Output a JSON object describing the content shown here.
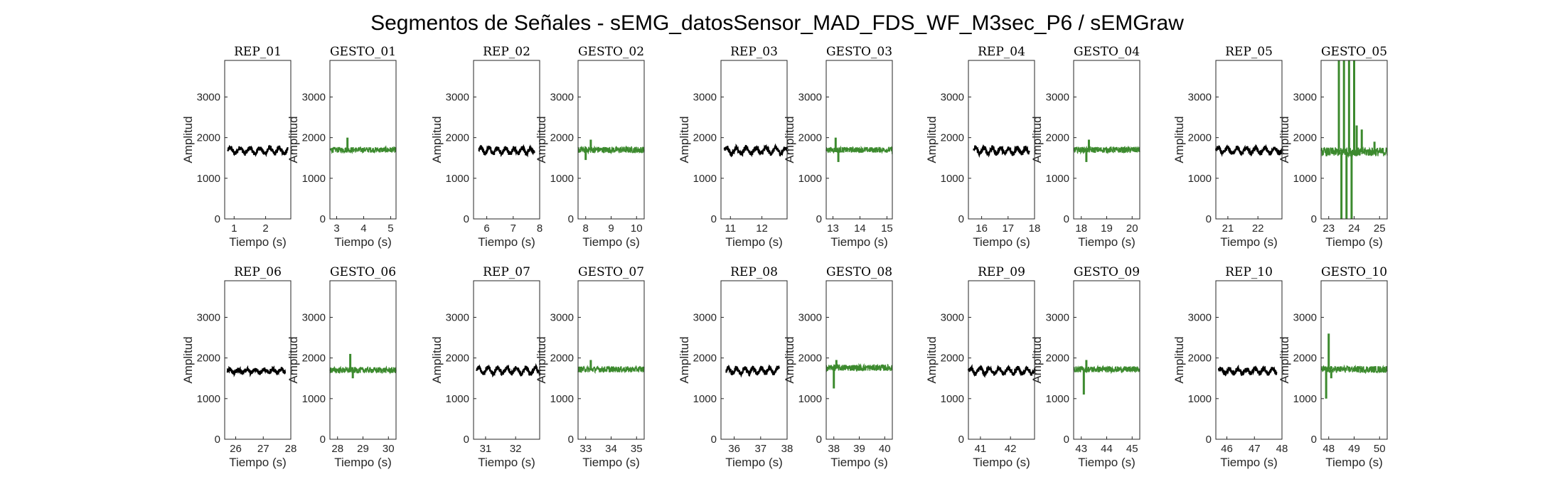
{
  "title": "Segmentos de Señales - sEMG_datosSensor_MAD_FDS_WF_M3sec_P6 / sEMGraw",
  "colors": {
    "rep": "#000000",
    "gesto": "#3c8a2e"
  },
  "chart_data": {
    "type": "line",
    "rows": 2,
    "cols": 10,
    "xlabel": "Tiempo (s)",
    "ylabel": "Amplitud",
    "ylim": [
      0,
      3900
    ],
    "yticks": [
      0,
      1000,
      2000,
      3000
    ],
    "panels": [
      {
        "title": "REP_01",
        "kind": "rep",
        "xlim": [
          0.7,
          2.8
        ],
        "xticks": [
          1,
          2
        ],
        "x": [
          0.8,
          2.7
        ],
        "baseline": 1680,
        "noise": 55,
        "wave": 70,
        "spikes": []
      },
      {
        "title": "GESTO_01",
        "kind": "gesto",
        "xlim": [
          2.75,
          5.2
        ],
        "xticks": [
          3,
          4,
          5
        ],
        "x": [
          2.75,
          5.2
        ],
        "baseline": 1700,
        "noise": 70,
        "wave": 0,
        "spikes": [
          [
            3.4,
            2000
          ]
        ]
      },
      {
        "title": "REP_02",
        "kind": "rep",
        "xlim": [
          5.5,
          8
        ],
        "xticks": [
          6,
          7,
          8
        ],
        "x": [
          5.7,
          7.8
        ],
        "baseline": 1680,
        "noise": 55,
        "wave": 70,
        "spikes": []
      },
      {
        "title": "GESTO_02",
        "kind": "gesto",
        "xlim": [
          7.7,
          10.3
        ],
        "xticks": [
          8,
          9,
          10
        ],
        "x": [
          7.7,
          10.3
        ],
        "baseline": 1700,
        "noise": 80,
        "wave": 0,
        "spikes": [
          [
            8.0,
            1450
          ],
          [
            8.2,
            1950
          ]
        ]
      },
      {
        "title": "REP_03",
        "kind": "rep",
        "xlim": [
          10.7,
          12.8
        ],
        "xticks": [
          11,
          12
        ],
        "x": [
          10.8,
          12.8
        ],
        "baseline": 1680,
        "noise": 55,
        "wave": 70,
        "spikes": []
      },
      {
        "title": "GESTO_03",
        "kind": "gesto",
        "xlim": [
          12.75,
          15.2
        ],
        "xticks": [
          13,
          14,
          15
        ],
        "x": [
          12.75,
          15.2
        ],
        "baseline": 1700,
        "noise": 70,
        "wave": 0,
        "spikes": [
          [
            13.2,
            1400
          ],
          [
            13.1,
            2000
          ]
        ]
      },
      {
        "title": "REP_04",
        "kind": "rep",
        "xlim": [
          15.5,
          18
        ],
        "xticks": [
          16,
          17,
          18
        ],
        "x": [
          15.7,
          17.8
        ],
        "baseline": 1680,
        "noise": 60,
        "wave": 70,
        "spikes": []
      },
      {
        "title": "GESTO_04",
        "kind": "gesto",
        "xlim": [
          17.7,
          20.3
        ],
        "xticks": [
          18,
          19,
          20
        ],
        "x": [
          17.7,
          20.3
        ],
        "baseline": 1700,
        "noise": 75,
        "wave": 0,
        "spikes": [
          [
            18.2,
            1400
          ],
          [
            18.3,
            1950
          ]
        ]
      },
      {
        "title": "REP_05",
        "kind": "rep",
        "xlim": [
          20.6,
          22.8
        ],
        "xticks": [
          21,
          22
        ],
        "x": [
          20.6,
          22.8
        ],
        "baseline": 1680,
        "noise": 55,
        "wave": 70,
        "spikes": []
      },
      {
        "title": "GESTO_05",
        "kind": "gesto",
        "xlim": [
          22.7,
          25.3
        ],
        "xticks": [
          23,
          24,
          25
        ],
        "x": [
          22.7,
          25.3
        ],
        "baseline": 1650,
        "noise": 110,
        "wave": 0,
        "spikes": [
          [
            23.4,
            3900
          ],
          [
            23.5,
            0
          ],
          [
            23.6,
            3900
          ],
          [
            23.7,
            0
          ],
          [
            23.8,
            3900
          ],
          [
            23.9,
            0
          ],
          [
            24.0,
            3900
          ],
          [
            24.1,
            2300
          ],
          [
            24.3,
            2200
          ],
          [
            24.8,
            1900
          ]
        ]
      },
      {
        "title": "REP_06",
        "kind": "rep",
        "xlim": [
          25.6,
          28
        ],
        "xticks": [
          26,
          27,
          28
        ],
        "x": [
          25.7,
          27.8
        ],
        "baseline": 1680,
        "noise": 50,
        "wave": 40,
        "spikes": []
      },
      {
        "title": "GESTO_06",
        "kind": "gesto",
        "xlim": [
          27.7,
          30.3
        ],
        "xticks": [
          28,
          29,
          30
        ],
        "x": [
          27.7,
          30.3
        ],
        "baseline": 1700,
        "noise": 75,
        "wave": 0,
        "spikes": [
          [
            28.5,
            2100
          ],
          [
            28.6,
            1500
          ]
        ]
      },
      {
        "title": "REP_07",
        "kind": "rep",
        "xlim": [
          30.6,
          32.8
        ],
        "xticks": [
          31,
          32
        ],
        "x": [
          30.7,
          32.8
        ],
        "baseline": 1690,
        "noise": 55,
        "wave": 70,
        "spikes": []
      },
      {
        "title": "GESTO_07",
        "kind": "gesto",
        "xlim": [
          32.7,
          35.3
        ],
        "xticks": [
          33,
          34,
          35
        ],
        "x": [
          32.7,
          35.3
        ],
        "baseline": 1720,
        "noise": 75,
        "wave": 0,
        "spikes": [
          [
            33.2,
            1950
          ]
        ]
      },
      {
        "title": "REP_08",
        "kind": "rep",
        "xlim": [
          35.5,
          38
        ],
        "xticks": [
          36,
          37,
          38
        ],
        "x": [
          35.7,
          37.7
        ],
        "baseline": 1690,
        "noise": 55,
        "wave": 70,
        "spikes": []
      },
      {
        "title": "GESTO_08",
        "kind": "gesto",
        "xlim": [
          37.7,
          40.3
        ],
        "xticks": [
          38,
          39,
          40
        ],
        "x": [
          37.7,
          40.3
        ],
        "baseline": 1760,
        "noise": 80,
        "wave": 0,
        "spikes": [
          [
            38.0,
            1250
          ],
          [
            38.1,
            1950
          ]
        ]
      },
      {
        "title": "REP_09",
        "kind": "rep",
        "xlim": [
          40.6,
          42.8
        ],
        "xticks": [
          41,
          42
        ],
        "x": [
          40.6,
          42.8
        ],
        "baseline": 1680,
        "noise": 55,
        "wave": 70,
        "spikes": []
      },
      {
        "title": "GESTO_09",
        "kind": "gesto",
        "xlim": [
          42.7,
          45.3
        ],
        "xticks": [
          43,
          44,
          45
        ],
        "x": [
          42.7,
          45.3
        ],
        "baseline": 1720,
        "noise": 75,
        "wave": 0,
        "spikes": [
          [
            43.1,
            1100
          ],
          [
            43.2,
            1950
          ]
        ]
      },
      {
        "title": "REP_10",
        "kind": "rep",
        "xlim": [
          45.6,
          48
        ],
        "xticks": [
          46,
          47,
          48
        ],
        "x": [
          45.7,
          47.8
        ],
        "baseline": 1680,
        "noise": 55,
        "wave": 60,
        "spikes": []
      },
      {
        "title": "GESTO_10",
        "kind": "gesto",
        "xlim": [
          47.7,
          50.3
        ],
        "xticks": [
          48,
          49,
          50
        ],
        "x": [
          47.7,
          50.3
        ],
        "baseline": 1720,
        "noise": 85,
        "wave": 0,
        "spikes": [
          [
            47.9,
            1000
          ],
          [
            48.0,
            2600
          ],
          [
            48.1,
            1500
          ]
        ]
      }
    ]
  }
}
